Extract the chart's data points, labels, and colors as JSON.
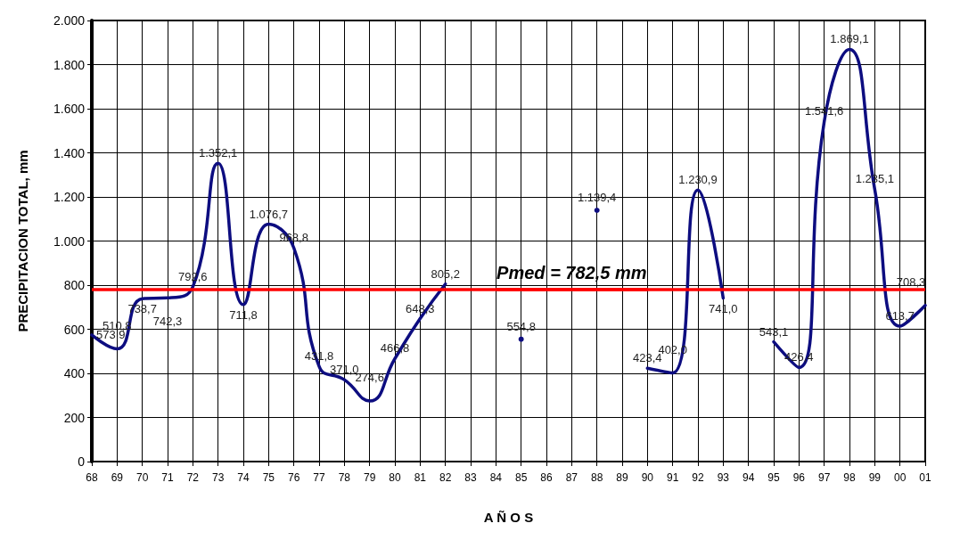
{
  "chart_data": {
    "type": "line",
    "xlabel": "A Ñ O S",
    "ylabel": "PRECIPITACION TOTAL, mm",
    "categories": [
      "68",
      "69",
      "70",
      "71",
      "72",
      "73",
      "74",
      "75",
      "76",
      "77",
      "78",
      "79",
      "80",
      "81",
      "82",
      "83",
      "84",
      "85",
      "86",
      "87",
      "88",
      "89",
      "90",
      "91",
      "92",
      "93",
      "94",
      "95",
      "96",
      "97",
      "98",
      "99",
      "00",
      "01"
    ],
    "series": [
      {
        "color": "#0d0d80",
        "values": [
          573.9,
          510.8,
          738.7,
          742.3,
          792.6,
          1352.1,
          711.8,
          1076.7,
          968.8,
          431.8,
          371.0,
          274.6,
          466.8,
          648.3,
          805.2,
          null,
          null,
          554.8,
          null,
          null,
          1139.4,
          null,
          423.4,
          402.0,
          1230.9,
          741.0,
          null,
          543.1,
          426.4,
          1541.6,
          1869.1,
          1235.1,
          613.7,
          708.3
        ],
        "value_labels": [
          "573,9",
          "510,8",
          "738,7",
          "742,3",
          "792,6",
          "1.352,1",
          "711,8",
          "1.076,7",
          "968,8",
          "431,8",
          "371,0",
          "274,6",
          "466,8",
          "648,3",
          "805,2",
          null,
          null,
          "554,8",
          null,
          null,
          "1.139,4",
          null,
          "423,4",
          "402,0",
          "1.230,9",
          "741,0",
          null,
          "543,1",
          "426,4",
          "1.541,6",
          "1.869,1",
          "1.235,1",
          "613,7",
          "708,3"
        ]
      }
    ],
    "ylim": [
      0,
      2000
    ],
    "yticks": [
      0,
      200,
      400,
      600,
      800,
      {
        "value": 1000,
        "label": "1.000"
      },
      {
        "value": 1200,
        "label": "1.200"
      },
      {
        "value": 1400,
        "label": "1.400"
      },
      {
        "value": 1600,
        "label": "1.600"
      },
      {
        "value": 1800,
        "label": "1.800"
      },
      {
        "value": 2000,
        "label": "2.000"
      }
    ],
    "grid": true,
    "ref_lines": [
      {
        "axis": "y",
        "value": 782.5,
        "label": "Pmed = 782,5 mm",
        "color": "#ff0000"
      }
    ]
  }
}
